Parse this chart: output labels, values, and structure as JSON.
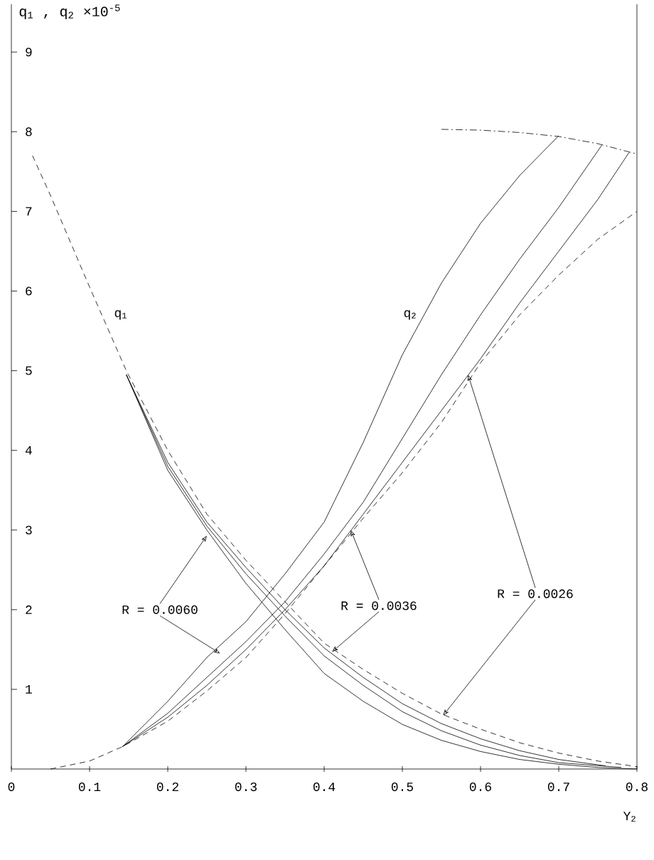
{
  "chart_data": {
    "type": "line",
    "ylabel": "q$_{1}$ , q$_{2}$ ×10$^{-5}$",
    "xlabel": "Y$_{2}$",
    "xlim": [
      0,
      0.8
    ],
    "ylim": [
      0,
      9.6
    ],
    "xticks": [
      0,
      0.1,
      0.2,
      0.3,
      0.4,
      0.5,
      0.6,
      0.7,
      0.8
    ],
    "yticks": [
      1,
      2,
      3,
      4,
      5,
      6,
      7,
      8,
      9
    ],
    "grid": false,
    "series": [
      {
        "color": "#000000",
        "line_style": "dashed",
        "x": [
          0.027,
          0.05,
          0.1,
          0.147,
          0.2,
          0.25,
          0.3,
          0.35,
          0.4,
          0.45,
          0.5,
          0.55,
          0.6,
          0.65,
          0.7,
          0.75,
          0.8
        ],
        "values": [
          7.7,
          7.2,
          6.05,
          5.0,
          4.0,
          3.2,
          2.62,
          2.1,
          1.58,
          1.25,
          0.95,
          0.69,
          0.5,
          0.33,
          0.2,
          0.1,
          0.03
        ]
      },
      {
        "color": "#000000",
        "line_style": "solid",
        "x": [
          0.147,
          0.2,
          0.25,
          0.3,
          0.35,
          0.4,
          0.45,
          0.5,
          0.55,
          0.6,
          0.65,
          0.7,
          0.75,
          0.8
        ],
        "values": [
          4.95,
          3.75,
          3.0,
          2.33,
          1.75,
          1.2,
          0.85,
          0.56,
          0.36,
          0.22,
          0.12,
          0.06,
          0.02,
          0.0
        ]
      },
      {
        "color": "#000000",
        "line_style": "solid",
        "x": [
          0.147,
          0.2,
          0.25,
          0.3,
          0.35,
          0.4,
          0.45,
          0.5,
          0.55,
          0.6,
          0.65,
          0.7,
          0.78
        ],
        "values": [
          4.95,
          3.8,
          3.05,
          2.45,
          1.92,
          1.42,
          1.05,
          0.72,
          0.48,
          0.3,
          0.17,
          0.08,
          0.02
        ]
      },
      {
        "color": "#000000",
        "line_style": "solid",
        "x": [
          0.147,
          0.2,
          0.25,
          0.3,
          0.35,
          0.4,
          0.45,
          0.5,
          0.55,
          0.6,
          0.65,
          0.7,
          0.76
        ],
        "values": [
          4.95,
          3.85,
          3.1,
          2.53,
          2.0,
          1.52,
          1.15,
          0.82,
          0.57,
          0.38,
          0.23,
          0.12,
          0.04
        ]
      },
      {
        "color": "#000000",
        "line_style": "dashed",
        "x": [
          0.05,
          0.1,
          0.142,
          0.2,
          0.25,
          0.3,
          0.35,
          0.4,
          0.45,
          0.5,
          0.55,
          0.6,
          0.65,
          0.7,
          0.75,
          0.8
        ],
        "values": [
          0.0,
          0.1,
          0.28,
          0.6,
          0.98,
          1.4,
          1.95,
          2.55,
          3.15,
          3.72,
          4.35,
          5.1,
          5.7,
          6.2,
          6.65,
          7.0
        ]
      },
      {
        "color": "#000000",
        "line_style": "solid",
        "x": [
          0.142,
          0.2,
          0.25,
          0.3,
          0.35,
          0.4,
          0.45,
          0.5,
          0.55,
          0.6,
          0.65,
          0.7
        ],
        "values": [
          0.28,
          0.85,
          1.4,
          1.85,
          2.45,
          3.1,
          4.1,
          5.2,
          6.1,
          6.85,
          7.45,
          7.95
        ]
      },
      {
        "color": "#000000",
        "line_style": "solid",
        "x": [
          0.142,
          0.2,
          0.25,
          0.3,
          0.35,
          0.4,
          0.45,
          0.5,
          0.55,
          0.6,
          0.65,
          0.7,
          0.755
        ],
        "values": [
          0.28,
          0.7,
          1.15,
          1.6,
          2.1,
          2.7,
          3.35,
          4.15,
          4.95,
          5.7,
          6.4,
          7.05,
          7.83
        ]
      },
      {
        "color": "#000000",
        "line_style": "solid",
        "x": [
          0.142,
          0.2,
          0.25,
          0.3,
          0.35,
          0.4,
          0.45,
          0.5,
          0.55,
          0.6,
          0.65,
          0.7,
          0.75,
          0.79
        ],
        "values": [
          0.28,
          0.65,
          1.05,
          1.5,
          2.0,
          2.55,
          3.2,
          3.85,
          4.5,
          5.15,
          5.85,
          6.5,
          7.15,
          7.74
        ]
      },
      {
        "color": "#000000",
        "line_style": "dashdot",
        "x": [
          0.55,
          0.6,
          0.65,
          0.7,
          0.75,
          0.8
        ],
        "values": [
          8.03,
          8.02,
          7.99,
          7.94,
          7.85,
          7.72
        ]
      }
    ],
    "annotations": [
      "q$_{1}$",
      "q$_{2}$",
      {
        "text": "R = 0.0060",
        "x": 0.25,
        "y": 2.93
      },
      {
        "text": "R = 0.0036",
        "x": 0.434,
        "y": 3.0
      },
      {
        "text": "R = 0.0026",
        "x": 0.584,
        "y": 4.95
      }
    ]
  }
}
